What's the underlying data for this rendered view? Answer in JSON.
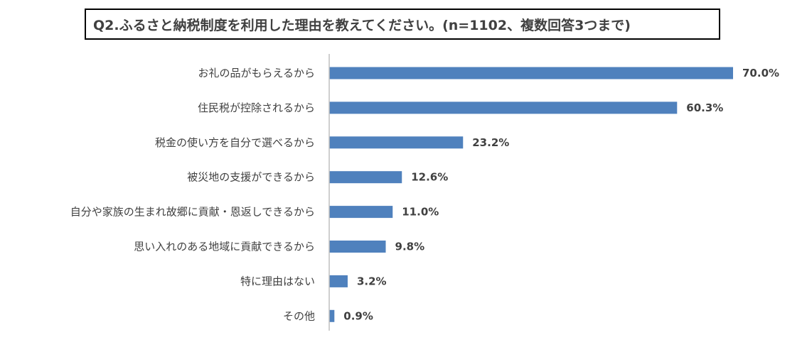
{
  "chart_data": {
    "type": "bar",
    "orientation": "horizontal",
    "title": "Q2.ふるさと納税制度を利用した理由を教えてください。(n=1102、複数回答3つまで)",
    "categories": [
      "お礼の品がもらえるから",
      "住民税が控除されるから",
      "税金の使い方を自分で選べるから",
      "被災地の支援ができるから",
      "自分や家族の生まれ故郷に貢献・恩返しできるから",
      "思い入れのある地域に貢献できるから",
      "特に理由はない",
      "その他"
    ],
    "values": [
      70.0,
      60.3,
      23.2,
      12.6,
      11.0,
      9.8,
      3.2,
      0.9
    ],
    "value_labels": [
      "70.0%",
      "60.3%",
      "23.2%",
      "12.6%",
      "11.0%",
      "9.8%",
      "3.2%",
      "0.9%"
    ],
    "xlim": [
      0,
      70
    ],
    "bar_color": "#4F81BD",
    "axis_color": "#BFBFBF",
    "grid": false,
    "legend": "none"
  }
}
